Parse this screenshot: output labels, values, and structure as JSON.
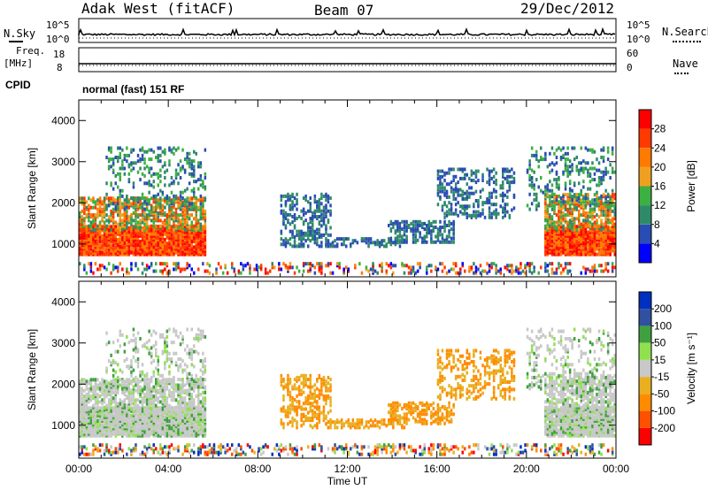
{
  "header": {
    "station": "Adak West (fitACF)",
    "beam": "Beam 07",
    "date": "29/Dec/2012"
  },
  "noise_panel": {
    "left_label": "N.Sky",
    "right_label": "N.Search",
    "left_ticks": [
      "10^5",
      "10^0"
    ],
    "right_ticks": [
      "10^5",
      "10^0"
    ]
  },
  "freq_panel": {
    "left_label_1": "Freq.",
    "left_label_2": "[MHz]",
    "left_ticks": [
      "18",
      "8"
    ],
    "right_label": "Nave",
    "right_ticks": [
      "60",
      "0"
    ]
  },
  "cpid_panel": {
    "label": "CPID",
    "text": "normal (fast) 151 RF"
  },
  "colors": {
    "power": [
      "#0000ff",
      "#2a4db3",
      "#2f8a6a",
      "#3cb040",
      "#f0a020",
      "#ff7a00",
      "#ff3a00",
      "#ff0000"
    ],
    "velocity": [
      "#ff0000",
      "#ff5000",
      "#ff8c00",
      "#e8b020",
      "#c8c8c8",
      "#90e050",
      "#40a040",
      "#3050a0",
      "#0030c0"
    ]
  },
  "chart_data": [
    {
      "type": "heatmap",
      "name": "power",
      "ylabel": "Slant Range [km]",
      "yticks": [
        "1000",
        "2000",
        "3000",
        "4000"
      ],
      "ylim": [
        200,
        4500
      ],
      "colorbar_label": "Power [dB]",
      "colorbar_ticks": [
        "4",
        "8",
        "12",
        "16",
        "20",
        "24",
        "28"
      ],
      "colorbar_range": [
        0,
        30
      ]
    },
    {
      "type": "heatmap",
      "name": "velocity",
      "ylabel": "Slant Range [km]",
      "yticks": [
        "1000",
        "2000",
        "3000",
        "4000"
      ],
      "ylim": [
        200,
        4500
      ],
      "colorbar_label": "Velocity [m s⁻¹]",
      "colorbar_ticks": [
        "-200",
        "-100",
        "-50",
        "-15",
        "15",
        "50",
        "100",
        "200"
      ],
      "xlabel": "Time UT",
      "xticks": [
        "00:00",
        "04:00",
        "08:00",
        "12:00",
        "16:00",
        "20:00",
        "00:00"
      ],
      "xlim": [
        0,
        24
      ]
    }
  ]
}
